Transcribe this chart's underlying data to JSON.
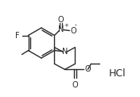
{
  "bg_color": "#ffffff",
  "line_color": "#2a2a2a",
  "text_color": "#2a2a2a",
  "HCl_text": "HCl",
  "F_text": "F",
  "N_nitro_text": "N",
  "plus_text": "+",
  "O_nitro1_text": "O",
  "O_nitro2_text": "O",
  "minus_text": "-",
  "N_pip_text": "N",
  "O_ester1_text": "O",
  "O_ester2_text": "O",
  "figsize": [
    1.76,
    1.22
  ],
  "dpi": 100
}
